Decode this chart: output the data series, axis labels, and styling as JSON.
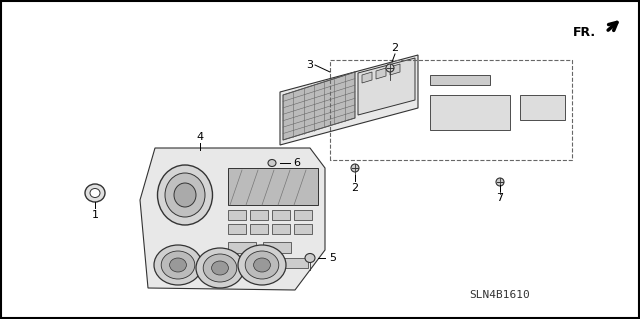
{
  "background_color": "#ffffff",
  "border_color": "#000000",
  "ref_number": "SLN4B1610",
  "fr_label": "FR.",
  "line_color": "#333333",
  "fill_light": "#e8e8e8",
  "fill_medium": "#cccccc",
  "fill_dark": "#aaaaaa",
  "figsize": [
    6.4,
    3.19
  ],
  "dpi": 100,
  "label_fontsize": 8,
  "ref_fontsize": 8
}
